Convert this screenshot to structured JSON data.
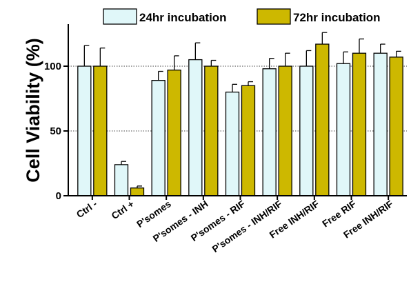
{
  "chart_data": {
    "type": "bar",
    "ylabel": "Cell Viability (%)",
    "xlabel": "",
    "title": "",
    "ylim": [
      0,
      135
    ],
    "yticks": [
      0,
      50,
      100
    ],
    "gridlines_at": [
      50,
      100
    ],
    "legend_position": "top",
    "categories": [
      "Ctrl -",
      "Ctrl +",
      "P'somes",
      "P'somes - INH",
      "P'somes - RIF",
      "P'somes - INH/RIF",
      "Free INH/RIF",
      "Free RIF",
      "Free INH/RIF"
    ],
    "series": [
      {
        "name": "24hr incubation",
        "color": "#e0f7f9",
        "values": [
          100,
          24,
          89,
          105,
          80,
          98,
          100,
          102,
          110
        ],
        "errors": [
          16,
          2.5,
          7,
          13,
          6,
          8,
          12,
          9,
          7
        ]
      },
      {
        "name": "72hr incubation",
        "color": "#cdb800",
        "values": [
          100,
          6,
          97,
          100,
          85,
          100,
          117,
          110,
          107
        ],
        "errors": [
          14,
          1.5,
          11,
          4.5,
          3,
          10,
          9,
          11,
          4.5
        ]
      }
    ]
  }
}
